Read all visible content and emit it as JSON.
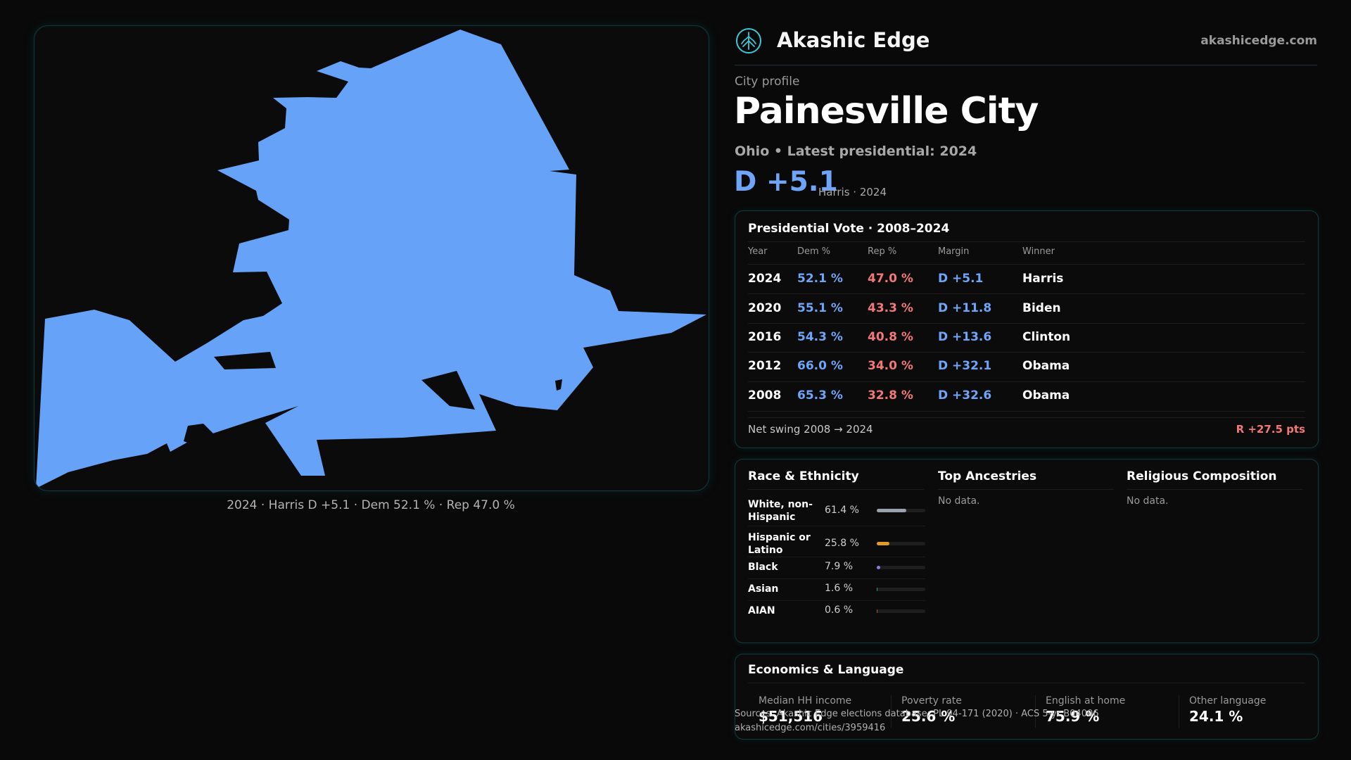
{
  "brand": {
    "name": "Akashic Edge",
    "url": "akashicedge.com",
    "logo_icon": "tree-in-circle-icon",
    "accent": "#3ec6d6"
  },
  "profile": {
    "label": "City profile",
    "city": "Painesville City",
    "subtitle": "Ohio • Latest presidential: 2024",
    "margin": "D +5.1",
    "margin_sub": "Harris · 2024"
  },
  "map": {
    "caption": "2024 · Harris D +5.1 · Dem 52.1 % · Rep 47.0 %",
    "fill": "#66a3f8"
  },
  "vote": {
    "title": "Presidential Vote · 2008–2024",
    "headers": {
      "year": "Year",
      "dem": "Dem %",
      "rep": "Rep %",
      "margin": "Margin",
      "winner": "Winner"
    },
    "rows": [
      {
        "year": "2024",
        "dem": "52.1 %",
        "rep": "47.0 %",
        "margin": "D +5.1",
        "winner": "Harris"
      },
      {
        "year": "2020",
        "dem": "55.1 %",
        "rep": "43.3 %",
        "margin": "D +11.8",
        "winner": "Biden"
      },
      {
        "year": "2016",
        "dem": "54.3 %",
        "rep": "40.8 %",
        "margin": "D +13.6",
        "winner": "Clinton"
      },
      {
        "year": "2012",
        "dem": "66.0 %",
        "rep": "34.0 %",
        "margin": "D +32.1",
        "winner": "Obama"
      },
      {
        "year": "2008",
        "dem": "65.3 %",
        "rep": "32.8 %",
        "margin": "D +32.6",
        "winner": "Obama"
      }
    ],
    "swing_label": "Net swing 2008 → 2024",
    "swing_value": "R +27.5 pts"
  },
  "race": {
    "title": "Race & Ethnicity",
    "items": [
      {
        "name_1": "White, non-",
        "name_2": "Hispanic",
        "pct": "61.4 %",
        "share": 0.614,
        "color": "#9aa3ad"
      },
      {
        "name_1": "Hispanic or",
        "name_2": "Latino",
        "pct": "25.8 %",
        "share": 0.258,
        "color": "#e39a2b"
      },
      {
        "name_1": "Black",
        "name_2": "",
        "pct": "7.9 %",
        "share": 0.079,
        "color": "#8f7be0"
      },
      {
        "name_1": "Asian",
        "name_2": "",
        "pct": "1.6 %",
        "share": 0.016,
        "color": "#2ea06a"
      },
      {
        "name_1": "AIAN",
        "name_2": "",
        "pct": "0.6 %",
        "share": 0.006,
        "color": "#b5533c"
      }
    ]
  },
  "ancestries": {
    "title": "Top Ancestries",
    "empty": "No data."
  },
  "religion": {
    "title": "Religious Composition",
    "empty": "No data."
  },
  "econ": {
    "title": "Economics & Language",
    "stats": [
      {
        "label": "Median HH income",
        "value": "$51,516"
      },
      {
        "label": "Poverty rate",
        "value": "25.6 %"
      },
      {
        "label": "English at home",
        "value": "75.9 %"
      },
      {
        "label": "Other language",
        "value": "24.1 %"
      }
    ]
  },
  "footer": {
    "source": "Sources: Akashic Edge elections database; PL 94-171 (2020) · ACS 5-yr B04006",
    "link": "akashicedge.com/cities/3959416"
  }
}
